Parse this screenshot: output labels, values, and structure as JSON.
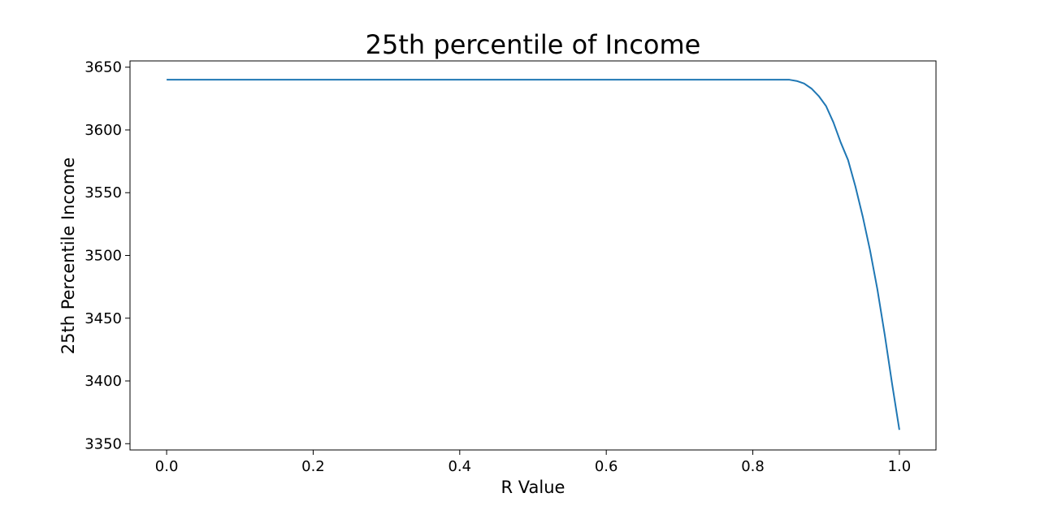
{
  "chart_data": {
    "type": "line",
    "title": "25th percentile of Income",
    "xlabel": "R Value",
    "ylabel": "25th Percentile Income",
    "xlim": [
      -0.05,
      1.05
    ],
    "ylim": [
      3345,
      3655
    ],
    "xticks": [
      0.0,
      0.2,
      0.4,
      0.6,
      0.8,
      1.0
    ],
    "xtick_labels": [
      "0.0",
      "0.2",
      "0.4",
      "0.6",
      "0.8",
      "1.0"
    ],
    "yticks": [
      3350,
      3400,
      3450,
      3500,
      3550,
      3600,
      3650
    ],
    "ytick_labels": [
      "3350",
      "3400",
      "3450",
      "3500",
      "3550",
      "3600",
      "3650"
    ],
    "grid": false,
    "series": [
      {
        "color": "#1f77b4",
        "x": [
          0.0,
          0.1,
          0.2,
          0.3,
          0.4,
          0.5,
          0.6,
          0.7,
          0.8,
          0.84,
          0.85,
          0.86,
          0.87,
          0.88,
          0.89,
          0.9,
          0.91,
          0.92,
          0.93,
          0.94,
          0.95,
          0.96,
          0.97,
          0.98,
          0.99,
          1.0
        ],
        "y": [
          3640,
          3640,
          3640,
          3640,
          3640,
          3640,
          3640,
          3640,
          3640,
          3640,
          3640,
          3639,
          3637,
          3633,
          3627,
          3619,
          3606,
          3590,
          3576,
          3555,
          3531,
          3504,
          3473,
          3437,
          3398,
          3361
        ]
      }
    ]
  }
}
